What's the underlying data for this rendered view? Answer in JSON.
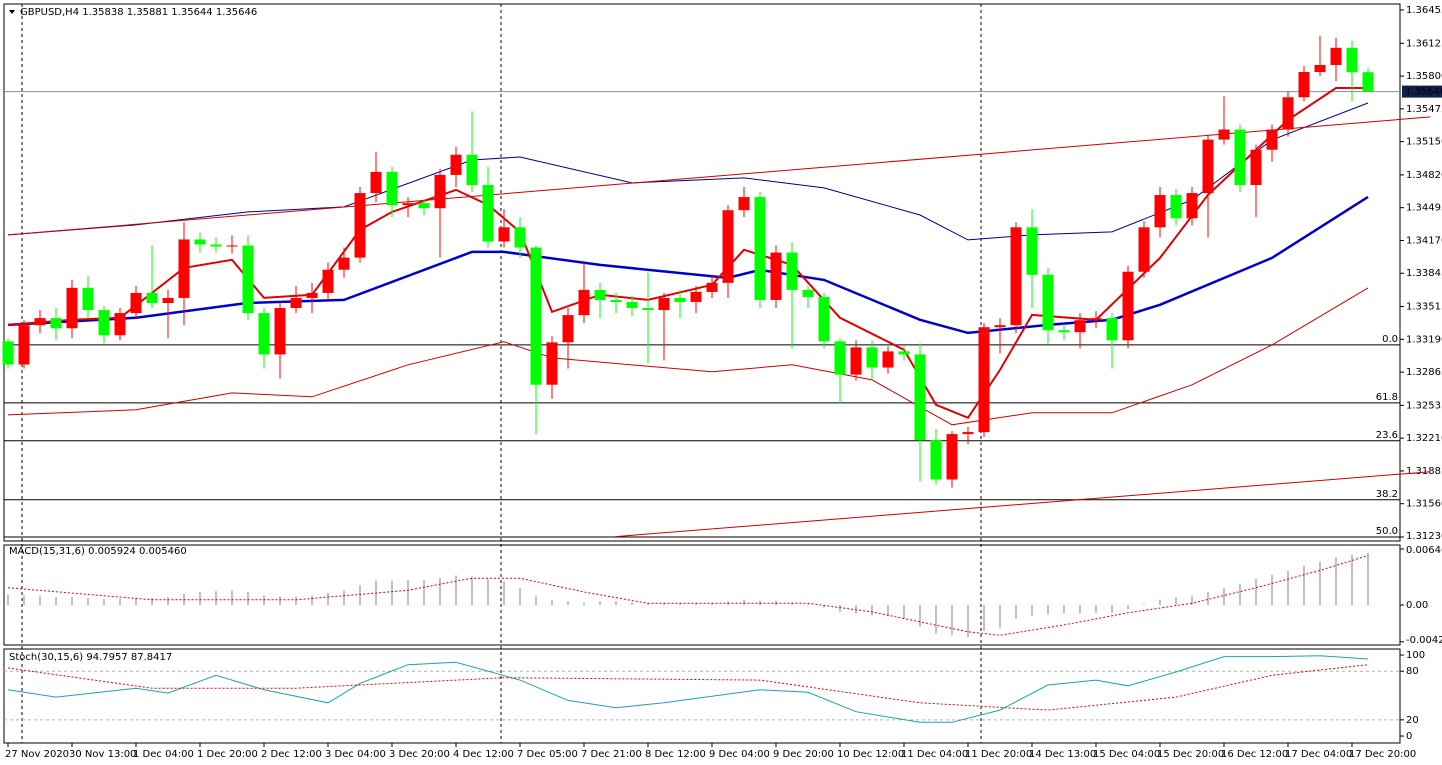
{
  "chart_data": {
    "type": "candlestick",
    "title": "GBPUSD,H4  1.35838 1.35881 1.35644 1.35646",
    "up_color": "#ff0000",
    "down_color": "#00ff00",
    "categories": [
      "27 Nov 2020",
      null,
      null,
      null,
      "30 Nov 13:00",
      null,
      null,
      null,
      "1 Dec 04:00",
      null,
      null,
      null,
      "1 Dec 20:00",
      null,
      null,
      null,
      "2 Dec 12:00",
      null,
      null,
      null,
      "3 Dec 04:00",
      null,
      null,
      null,
      "3 Dec 20:00",
      null,
      null,
      null,
      "4 Dec 12:00",
      null,
      null,
      null,
      "7 Dec 05:00",
      null,
      null,
      null,
      "7 Dec 21:00",
      null,
      null,
      null,
      "8 Dec 12:00",
      null,
      null,
      null,
      "9 Dec 04:00",
      null,
      null,
      null,
      "9 Dec 20:00",
      null,
      null,
      null,
      "10 Dec 12:00",
      null,
      null,
      null,
      "11 Dec 04:00",
      null,
      null,
      null,
      "11 Dec 20:00",
      null,
      null,
      null,
      "14 Dec 13:00",
      null,
      null,
      null,
      "15 Dec 04:00",
      null,
      null,
      null,
      "15 Dec 20:00",
      null,
      null,
      null,
      "16 Dec 12:00",
      null,
      null,
      null,
      "17 Dec 04:00",
      null,
      null,
      null,
      "17 Dec 20:00",
      null
    ],
    "open": [
      1.3317,
      1.3294,
      1.3333,
      1.334,
      1.333,
      1.337,
      1.3348,
      1.3323,
      1.3345,
      1.3365,
      1.3355,
      1.336,
      1.3418,
      1.3413,
      1.3411,
      1.3412,
      1.3345,
      1.3304,
      1.335,
      1.336,
      1.3365,
      1.3388,
      1.34,
      1.3464,
      1.3485,
      1.3452,
      1.3454,
      1.3449,
      1.3482,
      1.3502,
      1.3472,
      1.3416,
      1.343,
      1.341,
      1.3274,
      1.3316,
      1.3343,
      1.3368,
      1.3358,
      1.3356,
      1.335,
      1.3348,
      1.336,
      1.3356,
      1.3366,
      1.3375,
      1.3447,
      1.346,
      1.3358,
      1.3405,
      1.3368,
      1.3361,
      1.3317,
      1.3284,
      1.3311,
      1.3291,
      1.3307,
      1.3304,
      1.3219,
      1.318,
      1.3225,
      1.3227,
      1.3331,
      1.3333,
      1.343,
      1.3383,
      1.3328,
      1.3326,
      1.3338,
      1.334,
      1.3318,
      1.3386,
      1.343,
      1.3462,
      1.3439,
      1.3464,
      1.3517,
      1.3527,
      1.3472,
      1.3507,
      1.3527,
      1.3559,
      1.3584,
      1.3591,
      1.3608,
      1.35838
    ],
    "high": [
      1.332,
      1.3338,
      1.3348,
      1.335,
      1.3378,
      1.3382,
      1.3352,
      1.335,
      1.3372,
      1.3412,
      1.3368,
      1.3435,
      1.3425,
      1.342,
      1.3422,
      1.3422,
      1.335,
      1.3356,
      1.3372,
      1.3375,
      1.3395,
      1.341,
      1.347,
      1.3505,
      1.349,
      1.346,
      1.3458,
      1.3488,
      1.351,
      1.3545,
      1.349,
      1.3448,
      1.344,
      1.3412,
      1.3322,
      1.335,
      1.3395,
      1.3375,
      1.3365,
      1.3362,
      1.3385,
      1.3365,
      1.3368,
      1.3372,
      1.3382,
      1.3452,
      1.347,
      1.3465,
      1.3412,
      1.3415,
      1.3372,
      1.3365,
      1.332,
      1.3318,
      1.3318,
      1.3312,
      1.3312,
      1.3315,
      1.323,
      1.3228,
      1.3232,
      1.3335,
      1.334,
      1.3435,
      1.3448,
      1.339,
      1.3334,
      1.3345,
      1.3347,
      1.3345,
      1.3392,
      1.3436,
      1.347,
      1.3468,
      1.347,
      1.3522,
      1.356,
      1.3532,
      1.3512,
      1.3532,
      1.3565,
      1.359,
      1.362,
      1.3618,
      1.3615,
      1.35881
    ],
    "low": [
      1.329,
      1.329,
      1.3325,
      1.3318,
      1.332,
      1.334,
      1.3315,
      1.3318,
      1.334,
      1.335,
      1.332,
      1.3333,
      1.3405,
      1.3405,
      1.3404,
      1.3338,
      1.329,
      1.328,
      1.3345,
      1.3345,
      1.3358,
      1.338,
      1.3395,
      1.3455,
      1.344,
      1.344,
      1.3442,
      1.34,
      1.347,
      1.3465,
      1.341,
      1.341,
      1.34,
      1.3225,
      1.326,
      1.329,
      1.3335,
      1.334,
      1.3345,
      1.3342,
      1.3295,
      1.3298,
      1.334,
      1.3345,
      1.336,
      1.336,
      1.344,
      1.335,
      1.335,
      1.331,
      1.335,
      1.331,
      1.3255,
      1.3278,
      1.3278,
      1.3285,
      1.3298,
      1.3178,
      1.3175,
      1.3172,
      1.3215,
      1.3222,
      1.3305,
      1.3325,
      1.335,
      1.3315,
      1.3318,
      1.331,
      1.333,
      1.329,
      1.331,
      1.338,
      1.342,
      1.3432,
      1.3432,
      1.342,
      1.3512,
      1.3465,
      1.344,
      1.3495,
      1.352,
      1.3555,
      1.358,
      1.3575,
      1.3555,
      1.35644
    ],
    "close": [
      1.3294,
      1.3333,
      1.334,
      1.333,
      1.337,
      1.3348,
      1.3323,
      1.3345,
      1.3365,
      1.3355,
      1.336,
      1.3418,
      1.3413,
      1.3411,
      1.3412,
      1.3345,
      1.3304,
      1.335,
      1.336,
      1.3365,
      1.3388,
      1.34,
      1.3464,
      1.3485,
      1.3452,
      1.3454,
      1.3449,
      1.3482,
      1.3502,
      1.3472,
      1.3416,
      1.343,
      1.341,
      1.3274,
      1.3316,
      1.3343,
      1.3368,
      1.3358,
      1.3356,
      1.335,
      1.3348,
      1.336,
      1.3356,
      1.3366,
      1.3375,
      1.3447,
      1.346,
      1.3358,
      1.3405,
      1.3368,
      1.3361,
      1.3317,
      1.3284,
      1.3311,
      1.3291,
      1.3307,
      1.3304,
      1.3219,
      1.318,
      1.3225,
      1.3227,
      1.3331,
      1.3333,
      1.343,
      1.3383,
      1.3328,
      1.3326,
      1.3338,
      1.334,
      1.3318,
      1.3386,
      1.343,
      1.3462,
      1.3439,
      1.3464,
      1.3517,
      1.3527,
      1.3472,
      1.3507,
      1.3527,
      1.3559,
      1.3584,
      1.3591,
      1.3608,
      1.35838,
      1.35646
    ],
    "ylim": [
      1.3123,
      1.36455
    ],
    "yticks": [
      1.36455,
      1.36125,
      {
        "value": 1.358,
        "label": "1.35800"
      },
      1.35475,
      {
        "value": 1.3515,
        "label": "1.35150"
      },
      {
        "value": 1.3482,
        "label": "1.34820"
      },
      1.34495,
      {
        "value": 1.3417,
        "label": "1.34170"
      },
      1.33845,
      1.33515,
      {
        "value": 1.3319,
        "label": "1.33190"
      },
      1.32865,
      1.32535,
      {
        "value": 1.3221,
        "label": "1.32210"
      },
      1.31885,
      {
        "value": 1.3156,
        "label": "1.31560"
      },
      {
        "value": 1.3123,
        "label": "1.31230"
      }
    ],
    "current_price": 1.35646,
    "fib_levels": [
      {
        "value": 1.33135,
        "label": "0.0"
      },
      {
        "value": 1.3256,
        "label": "61.8"
      },
      {
        "value": 1.32184,
        "label": "23.6"
      },
      {
        "value": 1.31599,
        "label": "38.2"
      },
      {
        "value": 1.3123,
        "label": "50.0"
      }
    ],
    "overlays": [
      {
        "color": "#00008b",
        "width": 1,
        "x": [
          0,
          8,
          15,
          21,
          29,
          32,
          39,
          46,
          51,
          57,
          60,
          64,
          69,
          74,
          79,
          85
        ],
        "values": [
          1.34225,
          1.34324,
          1.34453,
          1.34503,
          1.34968,
          1.34998,
          1.34741,
          1.3479,
          1.34691,
          1.34423,
          1.34176,
          1.34225,
          1.34255,
          1.34572,
          1.35167,
          1.35533
        ]
      },
      {
        "color": "#0000c8",
        "width": 2.5,
        "x": [
          0,
          8,
          15,
          21,
          29,
          31,
          37,
          45,
          47,
          51,
          57,
          60,
          65,
          69,
          72,
          79,
          85
        ],
        "values": [
          1.33333,
          1.33403,
          1.33551,
          1.33581,
          1.34057,
          1.34057,
          1.33928,
          1.33799,
          1.33878,
          1.33779,
          1.33383,
          1.33254,
          1.33333,
          1.33383,
          1.33532,
          1.33997,
          1.34602
        ]
      },
      {
        "color": "#cc0000",
        "width": 1,
        "x": [
          0,
          8,
          14,
          19,
          25,
          31,
          34,
          44,
          49,
          54,
          59,
          64,
          69,
          74,
          79,
          85
        ],
        "values": [
          1.32441,
          1.32491,
          1.32659,
          1.3262,
          1.32937,
          1.33165,
          1.33006,
          1.32868,
          1.32937,
          1.32788,
          1.32342,
          1.32461,
          1.32461,
          1.32739,
          1.33135,
          1.337
        ]
      },
      {
        "color": "#e00000",
        "width": 2,
        "x": [
          0,
          4,
          7,
          11,
          14,
          16,
          19,
          22,
          24,
          28,
          30,
          32,
          34,
          37,
          40,
          44,
          46,
          49,
          52,
          56,
          58,
          60,
          62,
          64,
          68,
          72,
          75,
          77,
          80,
          83,
          85
        ],
        "values": [
          1.33333,
          1.33383,
          1.33403,
          1.33898,
          1.33978,
          1.33601,
          1.33631,
          1.34275,
          1.34453,
          1.34671,
          1.34523,
          1.34255,
          1.33462,
          1.33631,
          1.33581,
          1.3373,
          1.34077,
          1.33928,
          1.33403,
          1.33086,
          1.32541,
          1.32412,
          1.32887,
          1.33432,
          1.33383,
          1.33997,
          1.34622,
          1.34919,
          1.35365,
          1.35682,
          1.35682
        ]
      },
      {
        "color": "#cc0000",
        "width": 1,
        "x": [
          0,
          88.9
        ],
        "values": [
          1.34225,
          1.35395
        ]
      },
      {
        "color": "#cc0000",
        "width": 1,
        "x": [
          37.9,
          88.9
        ],
        "values": [
          1.31233,
          1.31877
        ]
      }
    ],
    "macd": {
      "title": "MACD(15,31,6) 0.005924 0.005460",
      "ylim": [
        -0.00462,
        0.00693
      ],
      "yticks": [
        0.006467,
        {
          "value": 0,
          "label": "0.00"
        },
        -0.00425
      ],
      "histogram": [
        0.0012,
        0.0011,
        0.001,
        0.0009,
        0.0009,
        0.0008,
        0.0007,
        0.0007,
        0.0008,
        0.0008,
        0.0009,
        0.0013,
        0.0015,
        0.0016,
        0.0017,
        0.0015,
        0.0011,
        0.001,
        0.001,
        0.0011,
        0.0014,
        0.0017,
        0.0023,
        0.0028,
        0.0028,
        0.0029,
        0.0029,
        0.0031,
        0.0034,
        0.0033,
        0.003,
        0.0027,
        0.002,
        0.001,
        0.0006,
        0.0004,
        0.0003,
        0.0004,
        0.0004,
        0.0003,
        0.0002,
        0.0002,
        0.0002,
        0.0002,
        0.0002,
        0.0004,
        0.0006,
        0.0005,
        0.0005,
        0.0003,
        0.0001,
        -0.0003,
        -0.0008,
        -0.001,
        -0.0012,
        -0.0013,
        -0.0016,
        -0.0025,
        -0.0033,
        -0.0035,
        -0.0037,
        -0.003,
        -0.0026,
        -0.0016,
        -0.0012,
        -0.0011,
        -0.001,
        -0.001,
        -0.0009,
        -0.0009,
        -0.0005,
        0.0001,
        0.0006,
        0.0009,
        0.001,
        0.0015,
        0.002,
        0.0024,
        0.003,
        0.0035,
        0.004,
        0.0045,
        0.005,
        0.0055,
        0.0058,
        0.006
      ],
      "histogram_color": "#c0c0c0",
      "signal": {
        "color": "#e00000",
        "x": [
          0,
          9,
          18,
          25,
          29,
          32,
          36,
          40,
          50,
          54,
          60,
          62,
          66,
          70,
          74,
          78,
          82,
          85
        ],
        "values": [
          0.002,
          0.0006,
          0.0006,
          0.0017,
          0.0031,
          0.0031,
          0.0015,
          0.0002,
          0.0002,
          -0.0008,
          -0.0031,
          -0.0035,
          -0.0023,
          -0.0009,
          0.0002,
          0.002,
          0.004,
          0.0057
        ]
      }
    },
    "stoch": {
      "title": "Stoch(30,15,6) 94.7957 87.8417",
      "ylim": [
        -8.6,
        107.4
      ],
      "yticks": [
        100,
        80,
        20,
        0
      ],
      "levels": [
        80,
        20
      ],
      "main": {
        "color": "#20a0b0",
        "x": [
          0,
          3,
          8,
          10,
          13,
          16,
          20,
          22,
          25,
          28,
          32,
          35,
          38,
          41,
          47,
          50,
          53,
          57,
          59,
          62,
          65,
          68,
          70,
          73,
          76,
          79,
          82,
          85
        ],
        "values": [
          57,
          48,
          59,
          53,
          75,
          57,
          41,
          65,
          88,
          91,
          69,
          44,
          35,
          41,
          57,
          54,
          30,
          17,
          17,
          32,
          63,
          69,
          62,
          79,
          98,
          98,
          99,
          95
        ]
      },
      "signal": {
        "color": "#e00000",
        "x": [
          0,
          9,
          18,
          31,
          47,
          57,
          65,
          73,
          79,
          85
        ],
        "values": [
          84,
          59,
          59,
          72,
          69,
          41,
          32,
          48,
          75,
          88
        ]
      }
    }
  }
}
